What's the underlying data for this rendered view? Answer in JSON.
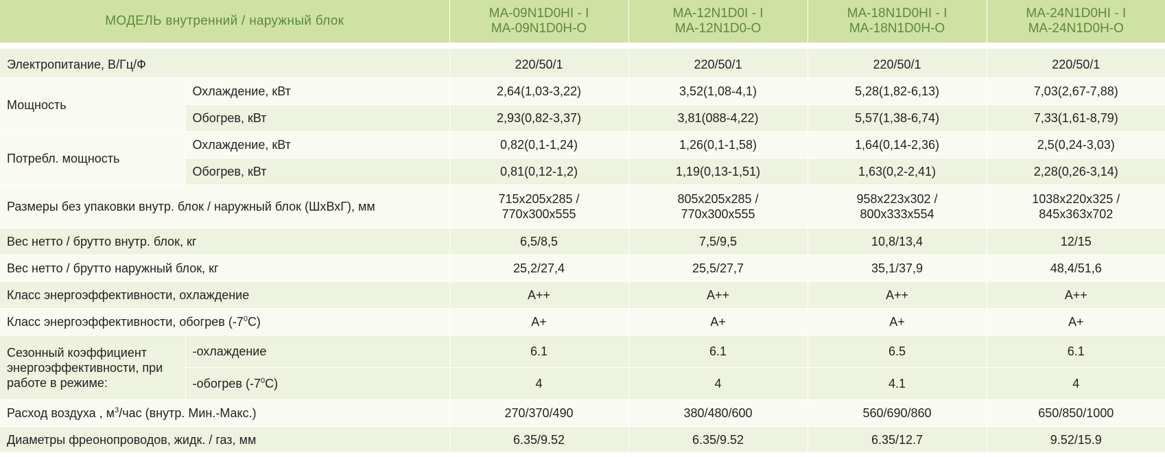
{
  "header": {
    "model_label": "МОДЕЛЬ  внутренний  /  наружный блок",
    "models": [
      {
        "indoor": "MA-09N1D0HI - I",
        "outdoor": "MA-09N1D0H-O"
      },
      {
        "indoor": "MA-12N1D0I - I",
        "outdoor": "MA-12N1D0-O"
      },
      {
        "indoor": "MA-18N1D0HI - I",
        "outdoor": "MA-18N1D0H-O"
      },
      {
        "indoor": "MA-24N1D0HI - I",
        "outdoor": "MA-24N1D0H-O"
      }
    ]
  },
  "rows": {
    "power_supply": {
      "label": "Электропитание, В/Гц/Ф",
      "values": [
        "220/50/1",
        "220/50/1",
        "220/50/1",
        "220/50/1"
      ]
    },
    "capacity": {
      "label": "Мощность",
      "cooling": {
        "label": "Охлаждение, кВт",
        "values": [
          "2,64(1,03-3,22)",
          "3,52(1,08-4,1)",
          "5,28(1,82-6,13)",
          "7,03(2,67-7,88)"
        ]
      },
      "heating": {
        "label": "Обогрев, кВт",
        "values": [
          "2,93(0,82-3,37)",
          "3,81(088-4,22)",
          "5,57(1,38-6,74)",
          "7,33(1,61-8,79)"
        ]
      }
    },
    "power_input": {
      "label": "Потребл. мощность",
      "cooling": {
        "label": "Охлаждение, кВт",
        "values": [
          "0,82(0,1-1,24)",
          "1,26(0,1-1,58)",
          "1,64(0,14-2,36)",
          "2,5(0,24-3,03)"
        ]
      },
      "heating": {
        "label": "Обогрев, кВт",
        "values": [
          "0,81(0,12-1,2)",
          "1,19(0,13-1,51)",
          "1,63(0,2-2,41)",
          "2,28(0,26-3,14)"
        ]
      }
    },
    "dimensions": {
      "label": "Размеры без упаковки внутр. блок / наружный блок  (ШхВхГ), мм",
      "values": [
        {
          "indoor": "715x205x285 /",
          "outdoor": "770x300x555"
        },
        {
          "indoor": "805x205x285 /",
          "outdoor": "770x300x555"
        },
        {
          "indoor": "958x223x302 /",
          "outdoor": "800x333x554"
        },
        {
          "indoor": "1038x220x325 /",
          "outdoor": "845x363x702"
        }
      ]
    },
    "weight_indoor": {
      "label": "Вес нетто / брутто внутр. блок, кг",
      "values": [
        "6,5/8,5",
        "7,5/9,5",
        "10,8/13,4",
        "12/15"
      ]
    },
    "weight_outdoor": {
      "label": "Вес нетто / брутто наружный блок, кг",
      "values": [
        "25,2/27,4",
        "25,5/27,7",
        "35,1/37,9",
        "48,4/51,6"
      ]
    },
    "energy_class_cooling": {
      "label": "Класс энергоэффективности, охлаждение",
      "values": [
        "A++",
        "A++",
        "A++",
        "A++"
      ]
    },
    "energy_class_heating": {
      "label_pre": "Класс энергоэффективности, обогрев (-7",
      "label_sup": "0",
      "label_post": "С)",
      "values": [
        "A+",
        "A+",
        "A+",
        "A+"
      ]
    },
    "seasonal": {
      "label": "Сезонный коэффициент энергоэффективности, при работе в режиме:",
      "cooling": {
        "label": "-охлаждение",
        "values": [
          "6.1",
          "6.1",
          "6.5",
          "6.1"
        ]
      },
      "heating": {
        "label_pre": "-обогрев  (-7",
        "label_sup": "0",
        "label_post": "С)",
        "values": [
          "4",
          "4",
          "4.1",
          "4"
        ]
      }
    },
    "airflow": {
      "label_pre": "Расход воздуха , м",
      "label_sup": "3",
      "label_post": "/час (внутр. Мин.-Макс.)",
      "values": [
        "270/370/490",
        "380/480/600",
        "560/690/860",
        "650/850/1000"
      ]
    },
    "pipes": {
      "label": "Диаметры фреонопроводов, жидк. / газ, мм",
      "values": [
        "6.35/9.52",
        "6.35/9.52",
        "6.35/12.7",
        "9.52/15.9"
      ]
    }
  }
}
